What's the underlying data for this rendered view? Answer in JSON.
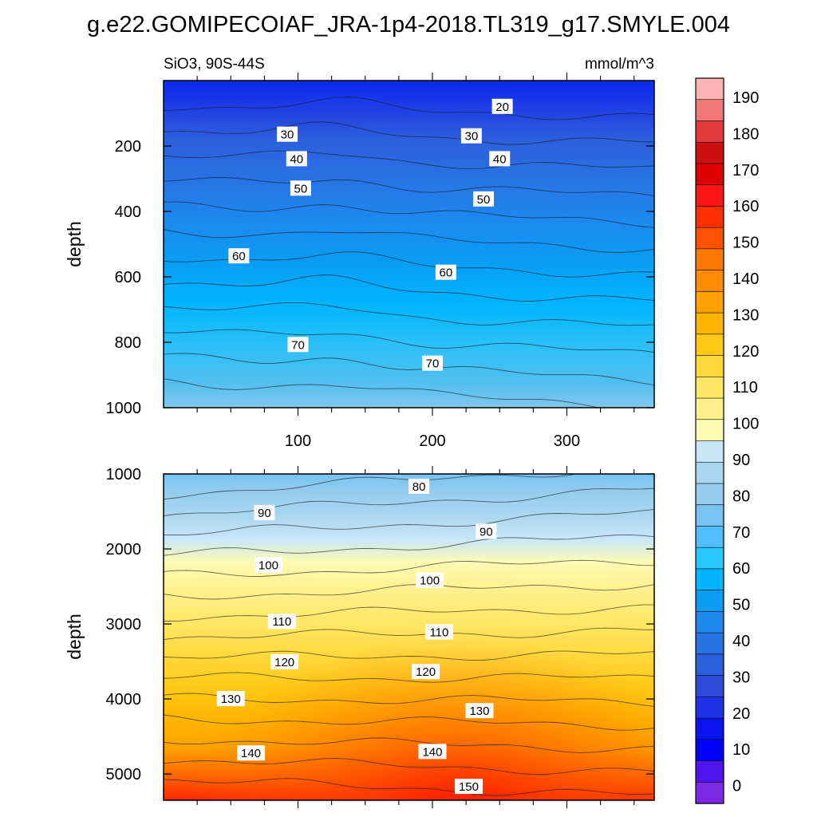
{
  "title": "g.e22.GOMIPECOIAF_JRA-1p4-2018.TL319_g17.SMYLE.004",
  "chart_data": [
    {
      "type": "heatmap",
      "panel": "upper",
      "left_label": "SiO3, 90S-44S",
      "right_label": "mmol/m^3",
      "ylabel": "depth",
      "xlabel": "",
      "xlim": [
        0,
        365
      ],
      "ylim": [
        1000,
        0
      ],
      "yticks": [
        200,
        400,
        600,
        800,
        1000
      ],
      "xticks": [
        100,
        200,
        300
      ],
      "grid": false,
      "contour_labels": [
        {
          "text": "20",
          "x": 252,
          "y": 80
        },
        {
          "text": "30",
          "x": 92,
          "y": 165
        },
        {
          "text": "30",
          "x": 229,
          "y": 170
        },
        {
          "text": "40",
          "x": 99,
          "y": 240
        },
        {
          "text": "40",
          "x": 250,
          "y": 240
        },
        {
          "text": "50",
          "x": 102,
          "y": 330
        },
        {
          "text": "50",
          "x": 238,
          "y": 363
        },
        {
          "text": "60",
          "x": 56,
          "y": 537
        },
        {
          "text": "60",
          "x": 210,
          "y": 587
        },
        {
          "text": "70",
          "x": 100,
          "y": 808
        },
        {
          "text": "70",
          "x": 200,
          "y": 865
        }
      ]
    },
    {
      "type": "heatmap",
      "panel": "lower",
      "ylabel": "depth",
      "xlabel": "",
      "xlim": [
        0,
        365
      ],
      "ylim": [
        5350,
        1000
      ],
      "yticks": [
        1000,
        2000,
        3000,
        4000,
        5000
      ],
      "grid": false,
      "contour_labels": [
        {
          "text": "80",
          "x": 190,
          "y": 1170
        },
        {
          "text": "90",
          "x": 75,
          "y": 1520
        },
        {
          "text": "90",
          "x": 240,
          "y": 1770
        },
        {
          "text": "100",
          "x": 78,
          "y": 2220
        },
        {
          "text": "100",
          "x": 198,
          "y": 2420
        },
        {
          "text": "110",
          "x": 88,
          "y": 2970
        },
        {
          "text": "110",
          "x": 205,
          "y": 3110
        },
        {
          "text": "120",
          "x": 90,
          "y": 3510
        },
        {
          "text": "120",
          "x": 195,
          "y": 3640
        },
        {
          "text": "130",
          "x": 50,
          "y": 4000
        },
        {
          "text": "130",
          "x": 235,
          "y": 4160
        },
        {
          "text": "140",
          "x": 65,
          "y": 4725
        },
        {
          "text": "140",
          "x": 200,
          "y": 4705
        },
        {
          "text": "150",
          "x": 227,
          "y": 5170
        }
      ]
    }
  ],
  "colorbar": {
    "labels": [
      "190",
      "180",
      "170",
      "160",
      "150",
      "140",
      "130",
      "120",
      "110",
      "100",
      "90",
      "80",
      "70",
      "60",
      "50",
      "40",
      "30",
      "20",
      "10",
      "0"
    ],
    "colors": [
      "#fbb4b4",
      "#f07878",
      "#e03c3c",
      "#cc1010",
      "#dd0000",
      "#ff1414",
      "#ff3000",
      "#ff5200",
      "#ff7800",
      "#ff8c00",
      "#ffa000",
      "#ffb400",
      "#ffc814",
      "#ffd83c",
      "#ffe664",
      "#fff08c",
      "#fffab4",
      "#c8e6f8",
      "#aad7f0",
      "#96cdee",
      "#78c3f0",
      "#50beff",
      "#28c8ff",
      "#00b4ff",
      "#0a9cf5",
      "#1e87f0",
      "#2873e6",
      "#2d5fdc",
      "#2d4bd7",
      "#1e32e6",
      "#0a14f0",
      "#0000ff",
      "#5014f0",
      "#7d28e6"
    ]
  }
}
